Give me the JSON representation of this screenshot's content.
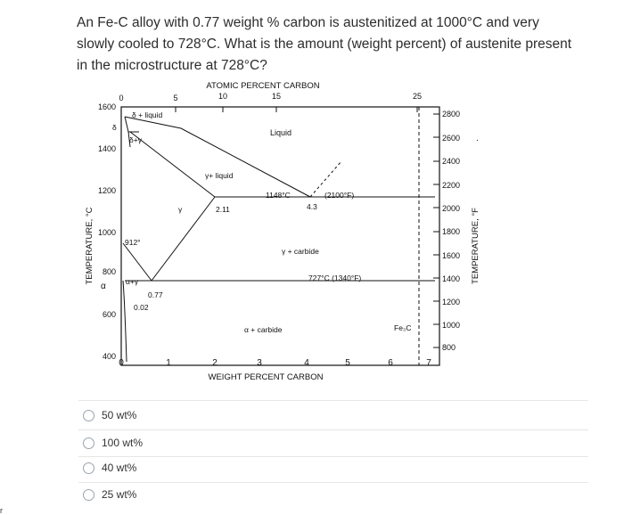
{
  "question": {
    "text": "An Fe-C alloy with 0.77 weight % carbon is austenitized at 1000°C and very slowly cooled to 728°C. What is the amount (weight percent) of austenite present in the microstructure at 728°C?"
  },
  "diagram": {
    "top_axis_title": "ATOMIC PERCENT CARBON",
    "top_ticks": [
      "0",
      "5",
      "10",
      "15",
      "25"
    ],
    "bottom_axis_title": "WEIGHT PERCENT CARBON",
    "bottom_ticks": [
      "0",
      "1",
      "2",
      "3",
      "4",
      "5",
      "6",
      "7"
    ],
    "left_axis_title": "TEMPERATURE, °C",
    "left_ticks": [
      "1600",
      "1400",
      "1200",
      "1000",
      "800",
      "600",
      "400"
    ],
    "right_axis_title": "TEMPERATURE, °F",
    "right_ticks": [
      "2800",
      "2600",
      "2400",
      "2200",
      "2000",
      "1800",
      "1600",
      "1400",
      "1200",
      "1000",
      "800"
    ],
    "labels": {
      "delta": "δ",
      "delta_liquid": "δ + liquid",
      "delta_gamma": "δ+γ",
      "liquid": "Liquid",
      "gamma_liquid": "γ+ liquid",
      "temp_1148": "1148°C",
      "temp_2100": "(2100°F)",
      "c_211": "2.11",
      "c_43": "4.3",
      "gamma": "γ",
      "temp_912": "912°",
      "gamma_carbide": "γ + carbide",
      "temp_727": "727°C (1340°F)",
      "alpha": "α",
      "alpha_gamma": "α+γ",
      "c_077": "0.77",
      "c_002": "0.02",
      "alpha_carbide": "α + carbide",
      "fe3c": "Fe₃C",
      "period": "."
    }
  },
  "options": [
    {
      "label": "50 wt%"
    },
    {
      "label": "100 wt%"
    },
    {
      "label": "40 wt%"
    },
    {
      "label": "25 wt%"
    }
  ],
  "edge_mark": "r"
}
